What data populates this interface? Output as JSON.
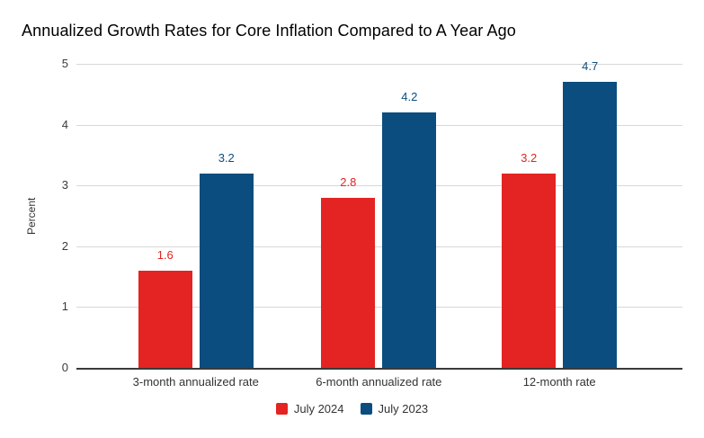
{
  "chart_data": {
    "type": "bar",
    "title": "Annualized Growth Rates for Core Inflation Compared to A Year Ago",
    "ylabel": "Percent",
    "xlabel": "",
    "categories": [
      "3-month annualized rate",
      "6-month annualized rate",
      "12-month rate"
    ],
    "series": [
      {
        "name": "July 2024",
        "color": "#e32422",
        "values": [
          1.6,
          2.8,
          3.2
        ]
      },
      {
        "name": "July 2023",
        "color": "#0b4d7e",
        "values": [
          3.2,
          4.2,
          4.7
        ]
      }
    ],
    "ylim": [
      0,
      5
    ],
    "yticks": [
      0,
      1,
      2,
      3,
      4,
      5
    ],
    "grid": "horizontal",
    "legend_position": "bottom",
    "data_labels_shown": true
  },
  "colors": {
    "gridline": "#d8d8d8",
    "axis_line": "#3a3a3a",
    "tick_text": "#3a3a3a",
    "label_text": "#333333",
    "title_text": "#000000",
    "background": "#ffffff"
  }
}
